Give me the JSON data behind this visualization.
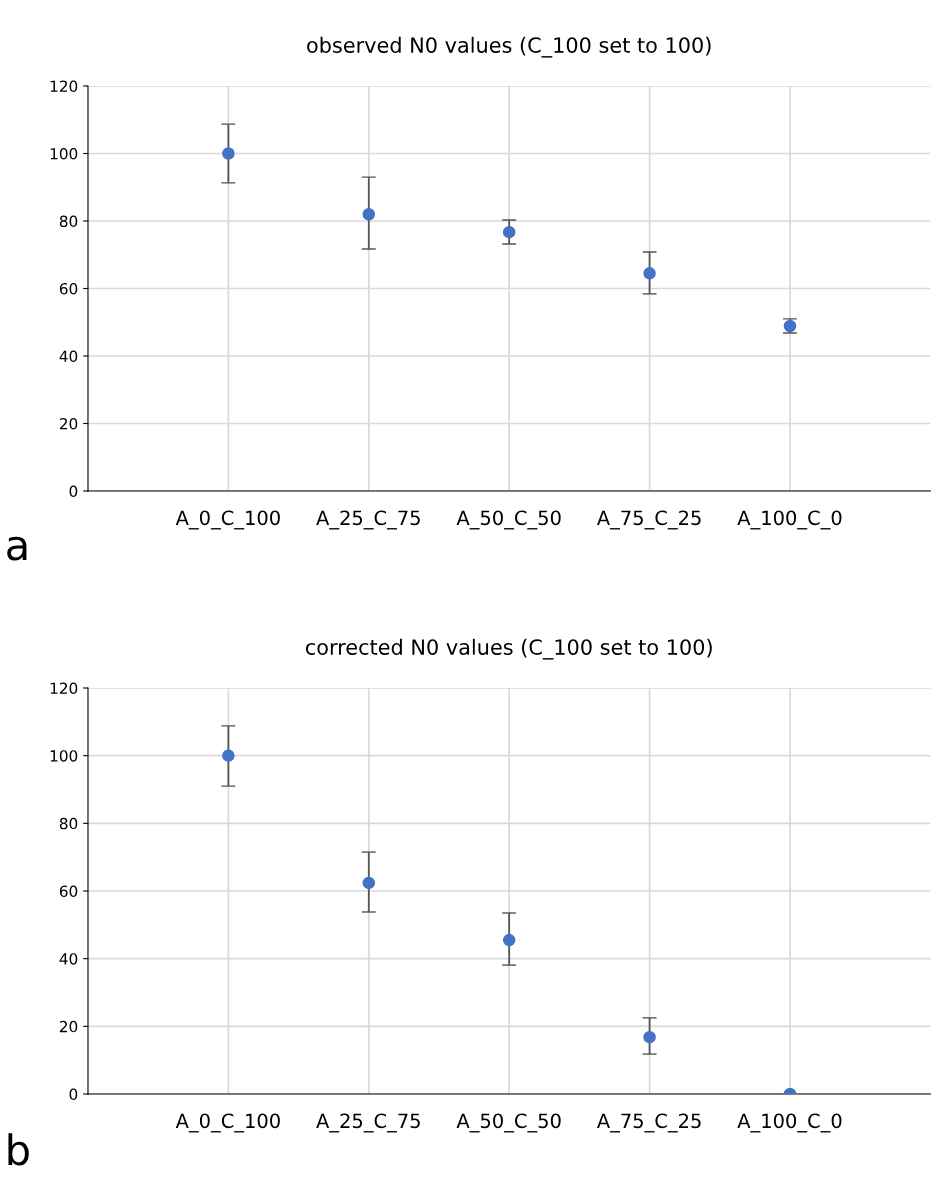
{
  "chart_data": [
    {
      "type": "scatter",
      "title": "observed N0 values (C_100 set to 100)",
      "categories": [
        "A_0_C_100",
        "A_25_C_75",
        "A_50_C_50",
        "A_75_C_25",
        "A_100_C_0"
      ],
      "series": [
        {
          "color": "#4472c4",
          "values": [
            100,
            82,
            76.7,
            64.5,
            48.9
          ],
          "errors": [
            [
              91.3,
              108.7
            ],
            [
              71.7,
              93
            ],
            [
              73.2,
              80.3
            ],
            [
              58.4,
              70.8
            ],
            [
              46.8,
              51
            ]
          ]
        }
      ],
      "ylim": [
        0,
        120
      ],
      "yticks": [
        0,
        20,
        40,
        60,
        80,
        100,
        120
      ],
      "grid": true,
      "marker": "circle",
      "annotations": [
        "a"
      ]
    },
    {
      "type": "scatter",
      "title": "corrected N0 values (C_100 set to 100)",
      "categories": [
        "A_0_C_100",
        "A_25_C_75",
        "A_50_C_50",
        "A_75_C_25",
        "A_100_C_0"
      ],
      "series": [
        {
          "color": "#4472c4",
          "values": [
            100,
            62.4,
            45.5,
            16.8,
            0
          ],
          "errors": [
            [
              91,
              108.8
            ],
            [
              53.8,
              71.5
            ],
            [
              38.1,
              53.5
            ],
            [
              11.8,
              22.5
            ],
            null
          ]
        }
      ],
      "ylim": [
        0,
        120
      ],
      "yticks": [
        0,
        20,
        40,
        60,
        80,
        100,
        120
      ],
      "grid": true,
      "marker": "circle",
      "annotations": [
        "b"
      ]
    }
  ]
}
